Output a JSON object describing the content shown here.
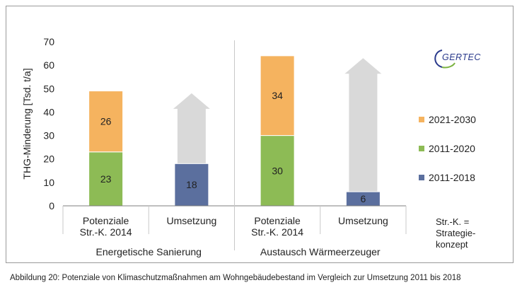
{
  "chart_data": {
    "type": "bar",
    "stacked": true,
    "ylabel": "THG-Minderung [Tsd. t/a]",
    "ylim": [
      0,
      70
    ],
    "yticks": [
      0,
      10,
      20,
      30,
      40,
      50,
      60,
      70
    ],
    "grid": false,
    "legend_position": "right",
    "groups": [
      {
        "label": "Energetische Sanierung",
        "categories": [
          "Potenziale\nStr.-K. 2014",
          "Umsetzung"
        ]
      },
      {
        "label": "Austausch Wärmeerzeuger",
        "categories": [
          "Potenziale\nStr.-K. 2014",
          "Umsetzung"
        ]
      }
    ],
    "categories": [
      "Potenziale Str.-K. 2014",
      "Umsetzung",
      "Potenziale Str.-K. 2014",
      "Umsetzung"
    ],
    "series": [
      {
        "name": "2011-2020",
        "color": "#8dbb55",
        "values": [
          23,
          null,
          30,
          null
        ]
      },
      {
        "name": "2021-2030",
        "color": "#f5b35f",
        "values": [
          26,
          null,
          34,
          null
        ]
      },
      {
        "name": "2011-2018",
        "color": "#5b6f9e",
        "values": [
          null,
          18,
          null,
          6
        ]
      }
    ],
    "legend_order": [
      "2021-2030",
      "2011-2020",
      "2011-2018"
    ],
    "arrows": [
      {
        "category_index": 1,
        "from": 18,
        "to": 48,
        "color": "#d9d9d9"
      },
      {
        "category_index": 3,
        "from": 6,
        "to": 63,
        "color": "#d9d9d9"
      }
    ]
  },
  "logo": {
    "text": "GERTEC"
  },
  "note": [
    "Str.-K. =",
    "Strategie-",
    "konzept"
  ],
  "caption": "Abbildung 20:  Potenziale von Klimaschutzmaßnahmen am Wohngebäudebestand im Vergleich zur Umsetzung 2011 bis 2018",
  "colors": {
    "axis": "#7f7f7f",
    "label_text": "#222222"
  }
}
